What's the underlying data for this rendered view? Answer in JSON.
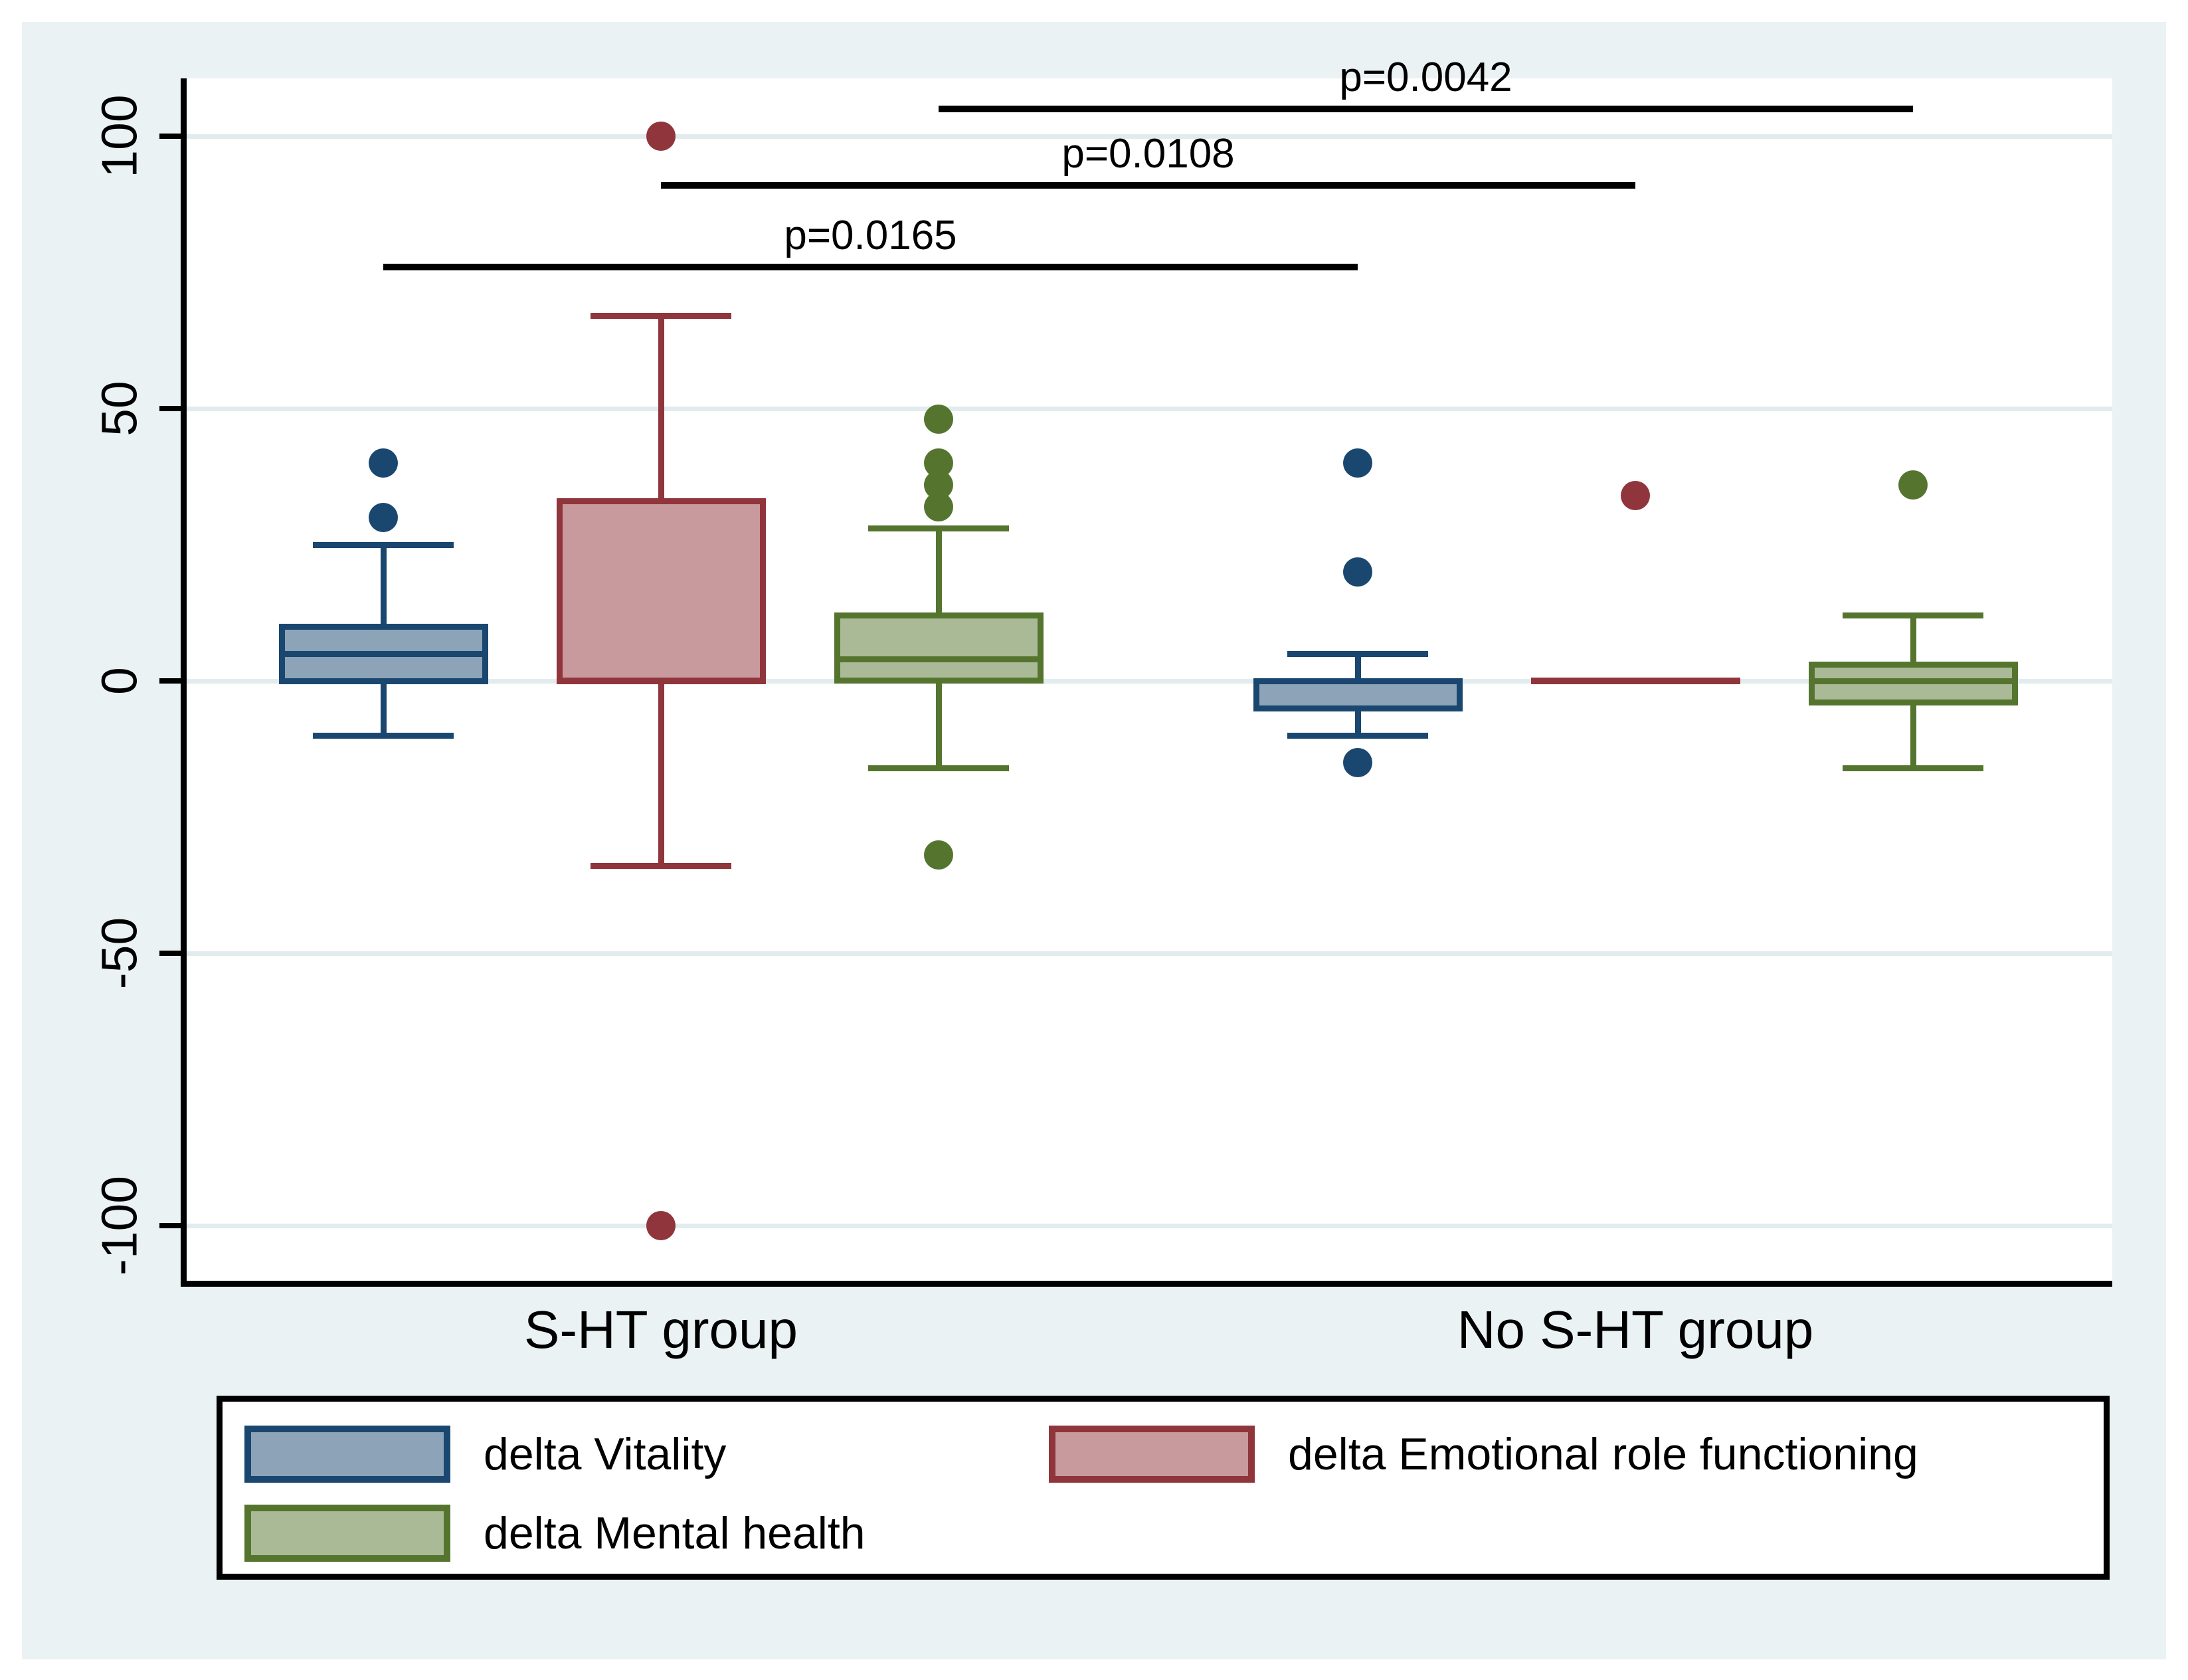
{
  "figure": {
    "background_color": "#EAF2F3",
    "plot_background_color": "#FFFFFF",
    "grid_color": "#E2ECEF",
    "axis_color": "#000000"
  },
  "y_axis": {
    "tick_values": [
      100,
      50,
      0,
      -50,
      -100
    ],
    "tick_labels": [
      "100",
      "50",
      "0",
      "-50",
      "-100"
    ]
  },
  "x_axis": {
    "group_labels": [
      "S-HT group",
      "No S-HT group"
    ]
  },
  "chart_data": {
    "type": "box",
    "title": "",
    "xlabel": "",
    "ylabel": "",
    "ylim": [
      -110,
      110
    ],
    "grid": true,
    "categories": [
      "S-HT group",
      "No S-HT group"
    ],
    "series": [
      {
        "name": "delta Vitality",
        "border_color": "#1A476F",
        "fill_color": "#8DA3B7",
        "boxes": [
          {
            "group": "S-HT group",
            "whisker_low": -10,
            "q1": 0,
            "median": 5,
            "q3": 10,
            "whisker_high": 25,
            "outliers": [
              40,
              30
            ]
          },
          {
            "group": "No S-HT group",
            "whisker_low": -10,
            "q1": -5,
            "median": 0,
            "q3": 0,
            "whisker_high": 5,
            "outliers": [
              40,
              20,
              -15
            ]
          }
        ]
      },
      {
        "name": "delta Emotional role functioning",
        "border_color": "#90353B",
        "fill_color": "#C89A9D",
        "boxes": [
          {
            "group": "S-HT group",
            "whisker_low": -34,
            "q1": 0,
            "median": 0,
            "q3": 33,
            "whisker_high": 67,
            "outliers": [
              100,
              -100
            ]
          },
          {
            "group": "No S-HT group",
            "whisker_low": 0,
            "q1": 0,
            "median": 0,
            "q3": 0,
            "whisker_high": 0,
            "outliers": [
              34
            ]
          }
        ]
      },
      {
        "name": "delta Mental health",
        "border_color": "#55752F",
        "fill_color": "#AABA97",
        "boxes": [
          {
            "group": "S-HT group",
            "whisker_low": -16,
            "q1": 0,
            "median": 4,
            "q3": 12,
            "whisker_high": 28,
            "outliers": [
              48,
              40,
              36,
              32,
              -32
            ]
          },
          {
            "group": "No S-HT group",
            "whisker_low": -16,
            "q1": -4,
            "median": 0,
            "q3": 3,
            "whisker_high": 12,
            "outliers": [
              36
            ]
          }
        ]
      }
    ],
    "significance": [
      {
        "label": "p=0.0165",
        "series": "delta Vitality",
        "series_index": 0,
        "between": [
          "S-HT group",
          "No S-HT group"
        ],
        "y_value": 76
      },
      {
        "label": "p=0.0108",
        "series": "delta Emotional role functioning",
        "series_index": 1,
        "between": [
          "S-HT group",
          "No S-HT group"
        ],
        "y_value": 91
      },
      {
        "label": "p=0.0042",
        "series": "delta Mental health",
        "series_index": 2,
        "between": [
          "S-HT group",
          "No S-HT group"
        ],
        "y_value": 105
      }
    ],
    "legend_position": "bottom"
  },
  "legend": {
    "items": [
      {
        "label": "delta Vitality",
        "border_color": "#1A476F",
        "fill_color": "#8DA3B7"
      },
      {
        "label": "delta Emotional role functioning",
        "border_color": "#90353B",
        "fill_color": "#C89A9D"
      },
      {
        "label": "delta Mental health",
        "border_color": "#55752F",
        "fill_color": "#AABA97"
      }
    ]
  }
}
